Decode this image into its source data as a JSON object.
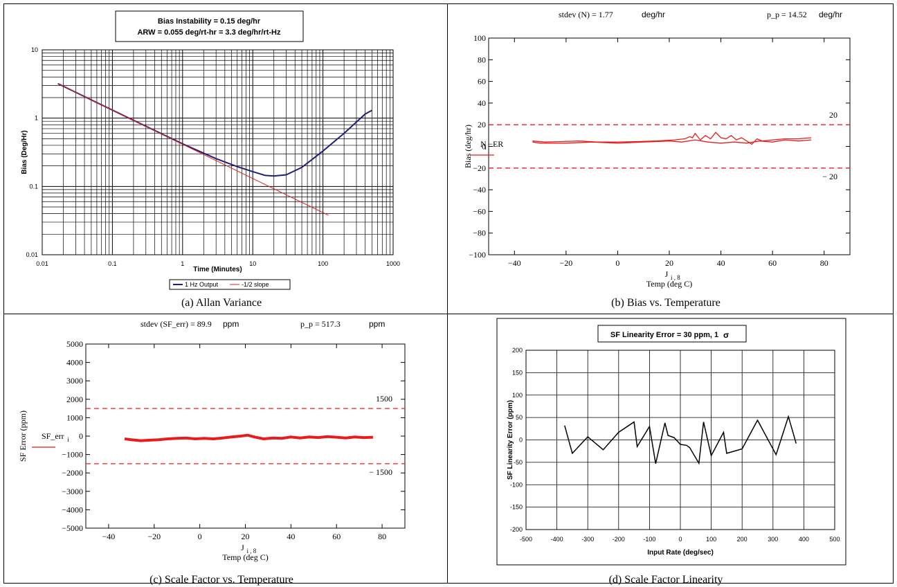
{
  "colors": {
    "allan_measured": "#1f1f7a",
    "allan_slope": "#e02020",
    "temp_trace": "#e81c1c",
    "limit_line": "#e82020",
    "linearity_line": "#000000"
  },
  "chart_data": [
    {
      "id": "allan",
      "type": "line",
      "caption": "(a) Allan Variance",
      "title_lines": [
        "Bias Instability = 0.15 deg/hr",
        "ARW = 0.055 deg/rt-hr = 3.3 deg/hr/rt-Hz"
      ],
      "xlabel": "Time (Minutes)",
      "ylabel": "Bias (Deg/Hr)",
      "xscale": "log",
      "yscale": "log",
      "xlim": [
        0.01,
        1000
      ],
      "ylim": [
        0.01,
        10
      ],
      "xticks": [
        "0.01",
        "0.1",
        "1",
        "10",
        "100",
        "1000"
      ],
      "yticks": [
        "0.01",
        "0.1",
        "1",
        "10"
      ],
      "grid": true,
      "legend_position": "bottom-center",
      "series": [
        {
          "name": "1 Hz Output",
          "x": [
            0.0167,
            0.05,
            0.2,
            1,
            3,
            6,
            10,
            15,
            20,
            30,
            50,
            100,
            200,
            400,
            500
          ],
          "y": [
            3.2,
            1.85,
            0.93,
            0.42,
            0.255,
            0.195,
            0.165,
            0.145,
            0.142,
            0.148,
            0.19,
            0.33,
            0.6,
            1.15,
            1.3
          ]
        },
        {
          "name": "-1/2 slope",
          "x": [
            0.0167,
            120
          ],
          "y": [
            3.2,
            0.0377
          ]
        }
      ]
    },
    {
      "id": "bias_temp",
      "type": "line",
      "caption": "(b) Bias vs. Temperature",
      "header_left": "stdev (N) = 1.77",
      "header_left_unit": "deg/hr",
      "header_right": "p_p = 14.52",
      "header_right_unit": "deg/hr",
      "xlabel_main": "J",
      "xlabel_sub": "i , 8",
      "xlabel2": "Temp (deg C)",
      "ylabel": "Bias (deg/hr)",
      "legend_main": "N",
      "legend_sub": "i",
      "legend_suffix": "−ER",
      "xlim": [
        -50,
        90
      ],
      "ylim": [
        -100,
        100
      ],
      "xticks": [
        "−40",
        "−20",
        "0",
        "20",
        "40",
        "60",
        "80"
      ],
      "xtick_values": [
        -40,
        -20,
        0,
        20,
        40,
        60,
        80
      ],
      "yticks": [
        "100",
        "80",
        "60",
        "40",
        "20",
        "0",
        "−20",
        "−40",
        "−60",
        "−80",
        "−100"
      ],
      "ytick_values": [
        100,
        80,
        60,
        40,
        20,
        0,
        -20,
        -40,
        -60,
        -80,
        -100
      ],
      "limits": [
        20,
        -20
      ],
      "limit_labels": [
        "20",
        "− 20"
      ],
      "series": [
        {
          "x": [
            -33,
            -28,
            -22,
            -15,
            -8,
            0,
            8,
            15,
            22,
            26,
            28,
            29,
            30,
            32,
            34,
            36,
            38,
            40,
            42,
            44,
            46,
            48,
            50,
            52,
            54,
            56,
            60,
            65,
            70,
            75
          ],
          "y": [
            5,
            4,
            4.5,
            5,
            4,
            4,
            4.5,
            5,
            6,
            7,
            9,
            8,
            12,
            6,
            10,
            7,
            13,
            8,
            7,
            10,
            6,
            8,
            5,
            2,
            7,
            5,
            6,
            7,
            7,
            8
          ]
        },
        {
          "x": [
            75,
            70,
            65,
            60,
            55,
            50,
            45,
            40,
            35,
            30,
            25,
            20,
            10,
            0,
            -10,
            -20,
            -30,
            -33
          ],
          "y": [
            6,
            5,
            6,
            4,
            5,
            3,
            4,
            3,
            4,
            6,
            4,
            5,
            4,
            3,
            4,
            3,
            3,
            4
          ]
        }
      ]
    },
    {
      "id": "sf_temp",
      "type": "line",
      "caption": "(c) Scale Factor vs. Temperature",
      "header_left": "stdev (SF_err) = 89.9",
      "header_left_unit": "ppm",
      "header_right": "p_p = 517.3",
      "header_right_unit": "ppm",
      "xlabel_main": "J",
      "xlabel_sub": "i , 8",
      "xlabel2": "Temp (deg C)",
      "ylabel": "SF Error (ppm)",
      "legend_main": "SF_err",
      "legend_sub": "i",
      "xlim": [
        -50,
        90
      ],
      "ylim": [
        -5000,
        5000
      ],
      "xticks": [
        "−40",
        "−20",
        "0",
        "20",
        "40",
        "60",
        "80"
      ],
      "xtick_values": [
        -40,
        -20,
        0,
        20,
        40,
        60,
        80
      ],
      "yticks": [
        "5000",
        "4000",
        "3000",
        "2000",
        "1000",
        "0",
        "−1000",
        "−2000",
        "−3000",
        "−4000",
        "−5000"
      ],
      "ytick_values": [
        5000,
        4000,
        3000,
        2000,
        1000,
        0,
        -1000,
        -2000,
        -3000,
        -4000,
        -5000
      ],
      "limits": [
        1500,
        -1500
      ],
      "limit_labels": [
        "1500",
        "− 1500"
      ],
      "series": [
        {
          "x": [
            -33,
            -30,
            -26,
            -22,
            -18,
            -14,
            -10,
            -6,
            -2,
            2,
            6,
            10,
            14,
            18,
            21,
            24,
            28,
            32,
            36,
            40,
            44,
            48,
            52,
            56,
            60,
            64,
            68,
            72,
            76
          ],
          "y": [
            -150,
            -200,
            -250,
            -220,
            -200,
            -150,
            -120,
            -100,
            -150,
            -120,
            -150,
            -100,
            -50,
            0,
            50,
            -50,
            -150,
            -100,
            -120,
            -50,
            -100,
            -50,
            -80,
            -30,
            -60,
            -100,
            -50,
            -80,
            -60
          ]
        }
      ]
    },
    {
      "id": "sf_linearity",
      "type": "line",
      "caption": "(d) Scale Factor Linearity",
      "title": "SF Linearity Error = 30 ppm, 1",
      "title_symbol": "σ",
      "xlabel": "Input Rate (deg/sec)",
      "ylabel": "SF Linearity Error (ppm)",
      "xlim": [
        -500,
        500
      ],
      "ylim": [
        -200,
        200
      ],
      "xticks": [
        "-500",
        "-400",
        "-300",
        "-200",
        "-100",
        "0",
        "100",
        "200",
        "300",
        "400",
        "500"
      ],
      "xtick_values": [
        -500,
        -400,
        -300,
        -200,
        -100,
        0,
        100,
        200,
        300,
        400,
        500
      ],
      "yticks": [
        "200",
        "150",
        "100",
        "50",
        "0",
        "-50",
        "-100",
        "-150",
        "-200"
      ],
      "ytick_values": [
        200,
        150,
        100,
        50,
        0,
        -50,
        -100,
        -150,
        -200
      ],
      "grid": true,
      "series": [
        {
          "x": [
            -375,
            -350,
            -300,
            -250,
            -200,
            -150,
            -140,
            -100,
            -80,
            -50,
            -40,
            -20,
            0,
            20,
            30,
            60,
            75,
            100,
            140,
            150,
            200,
            250,
            310,
            350,
            375
          ],
          "y": [
            32,
            -30,
            7,
            -22,
            17,
            40,
            -15,
            30,
            -53,
            38,
            10,
            5,
            -10,
            -12,
            -17,
            -52,
            40,
            -35,
            17,
            -30,
            -20,
            44,
            -33,
            52,
            -8
          ]
        }
      ]
    }
  ]
}
